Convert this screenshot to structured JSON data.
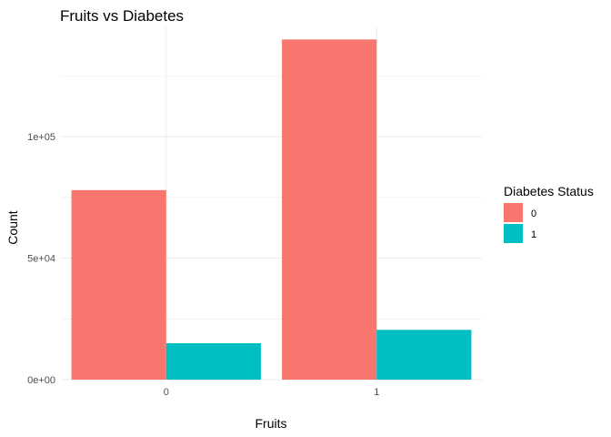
{
  "chart_data": {
    "type": "bar",
    "title": "Fruits vs Diabetes",
    "xlabel": "Fruits",
    "ylabel": "Count",
    "categories": [
      "0",
      "1"
    ],
    "series": [
      {
        "name": "0",
        "values": [
          78000,
          140000
        ],
        "color": "#F8766D"
      },
      {
        "name": "1",
        "values": [
          15000,
          20500
        ],
        "color": "#00BFC4"
      }
    ],
    "ylim": [
      0,
      145000
    ],
    "yticks": [
      {
        "value": 0,
        "label": "0e+00"
      },
      {
        "value": 50000,
        "label": "5e+04"
      },
      {
        "value": 100000,
        "label": "1e+05"
      }
    ],
    "grid": true,
    "legend": {
      "title": "Diabetes Status",
      "position": "right"
    }
  }
}
